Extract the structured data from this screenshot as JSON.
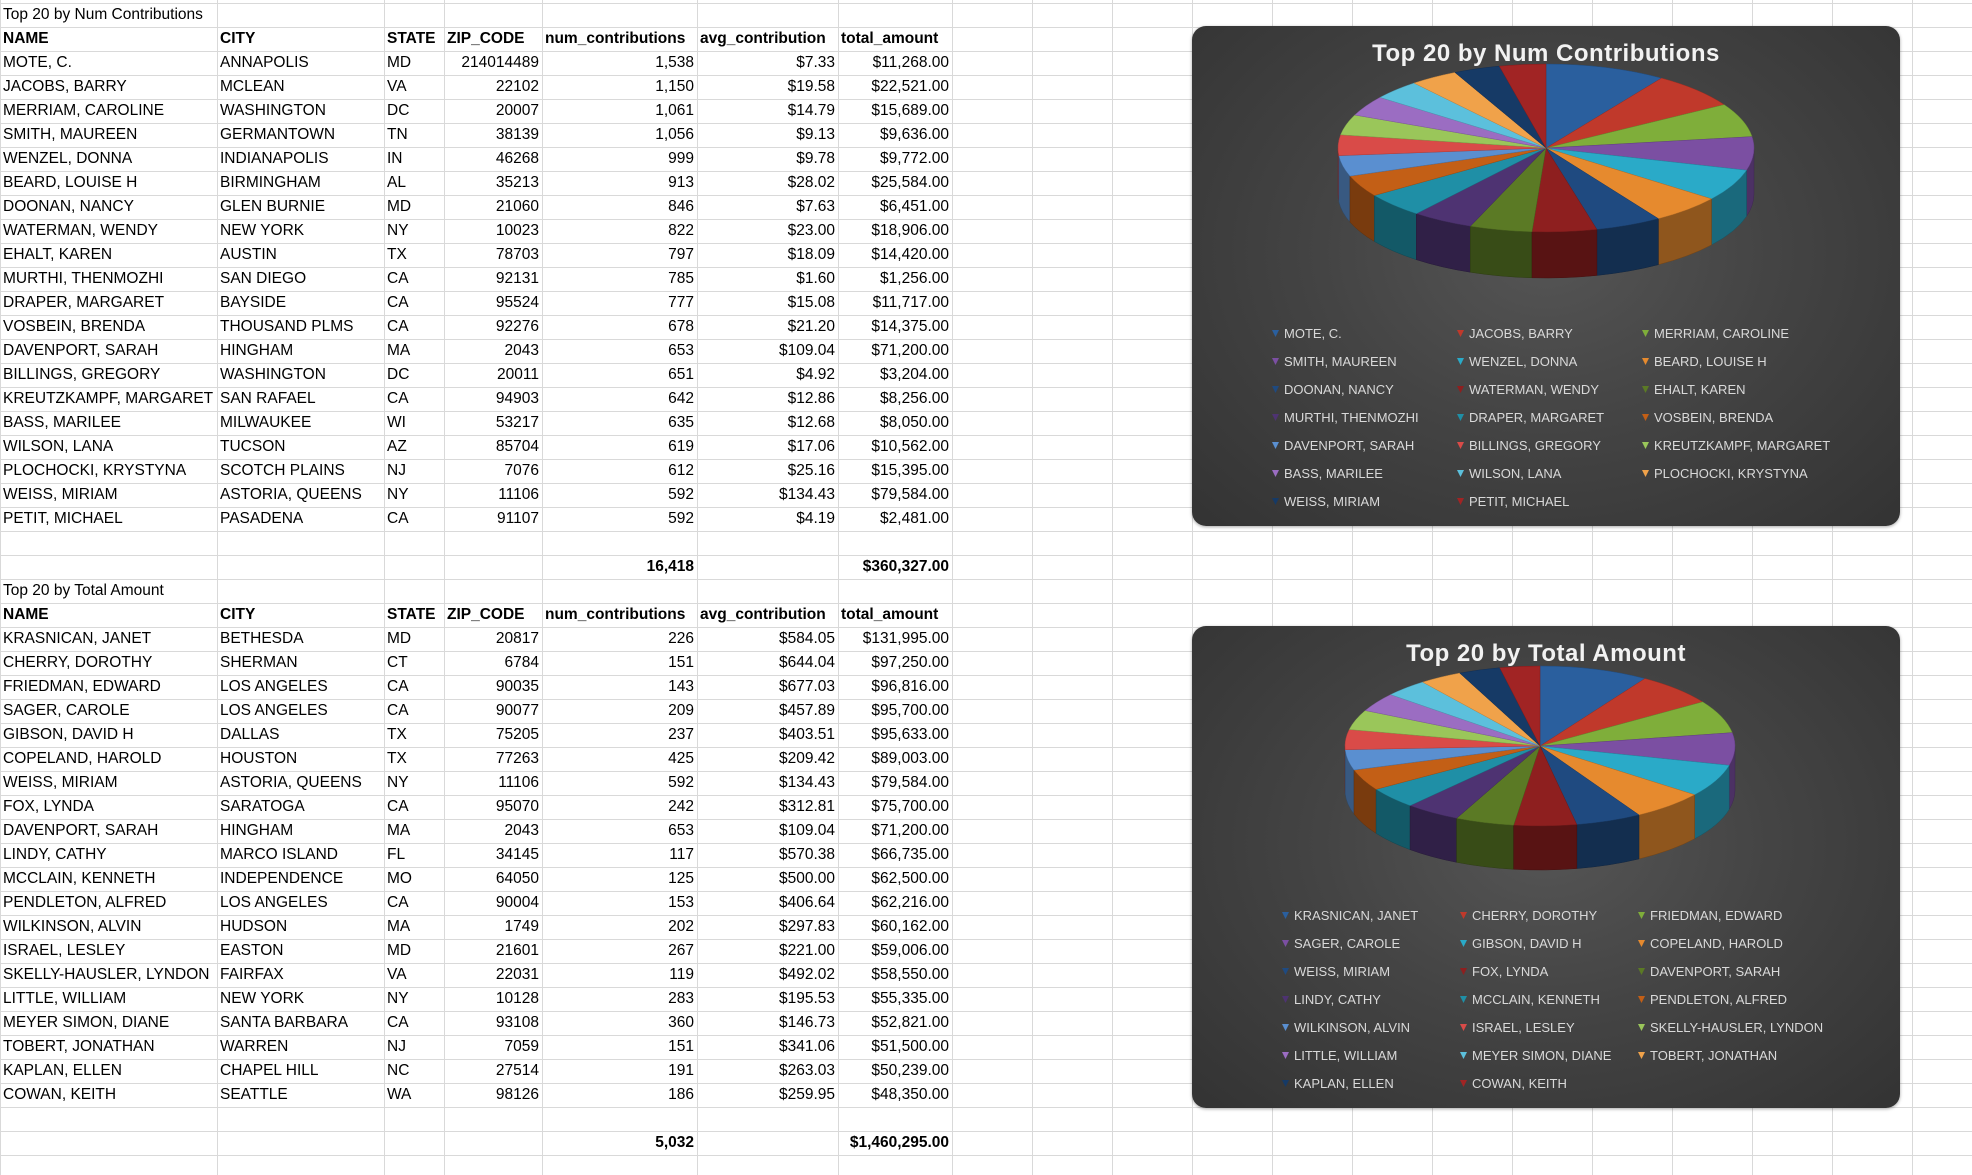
{
  "columns": [
    "NAME",
    "CITY",
    "STATE",
    "ZIP_CODE",
    "num_contributions",
    "avg_contribution",
    "total_amount"
  ],
  "palette": [
    "#2a5f9e",
    "#c0392b",
    "#7fae3a",
    "#7b4fa2",
    "#2aaac8",
    "#e68a2e",
    "#1f4a80",
    "#8e1f1f",
    "#5b7a25",
    "#4e3372",
    "#1f8fa6",
    "#c35f16",
    "#5a8fd0",
    "#d94b48",
    "#9ac65a",
    "#9b6dc2",
    "#5cc0dc",
    "#f0a24a",
    "#163a66",
    "#a12424"
  ],
  "tables": [
    {
      "title": "Top 20 by Num Contributions",
      "rows": [
        [
          "MOTE, C.",
          "ANNAPOLIS",
          "MD",
          "214014489",
          "1,538",
          "$7.33",
          "$11,268.00"
        ],
        [
          "JACOBS, BARRY",
          "MCLEAN",
          "VA",
          "22102",
          "1,150",
          "$19.58",
          "$22,521.00"
        ],
        [
          "MERRIAM, CAROLINE",
          "WASHINGTON",
          "DC",
          "20007",
          "1,061",
          "$14.79",
          "$15,689.00"
        ],
        [
          "SMITH, MAUREEN",
          "GERMANTOWN",
          "TN",
          "38139",
          "1,056",
          "$9.13",
          "$9,636.00"
        ],
        [
          "WENZEL, DONNA",
          "INDIANAPOLIS",
          "IN",
          "46268",
          "999",
          "$9.78",
          "$9,772.00"
        ],
        [
          "BEARD, LOUISE H",
          "BIRMINGHAM",
          "AL",
          "35213",
          "913",
          "$28.02",
          "$25,584.00"
        ],
        [
          "DOONAN, NANCY",
          "GLEN BURNIE",
          "MD",
          "21060",
          "846",
          "$7.63",
          "$6,451.00"
        ],
        [
          "WATERMAN, WENDY",
          "NEW YORK",
          "NY",
          "10023",
          "822",
          "$23.00",
          "$18,906.00"
        ],
        [
          "EHALT, KAREN",
          "AUSTIN",
          "TX",
          "78703",
          "797",
          "$18.09",
          "$14,420.00"
        ],
        [
          "MURTHI, THENMOZHI",
          "SAN DIEGO",
          "CA",
          "92131",
          "785",
          "$1.60",
          "$1,256.00"
        ],
        [
          "DRAPER, MARGARET",
          "BAYSIDE",
          "CA",
          "95524",
          "777",
          "$15.08",
          "$11,717.00"
        ],
        [
          "VOSBEIN, BRENDA",
          "THOUSAND PLMS",
          "CA",
          "92276",
          "678",
          "$21.20",
          "$14,375.00"
        ],
        [
          "DAVENPORT, SARAH",
          "HINGHAM",
          "MA",
          "2043",
          "653",
          "$109.04",
          "$71,200.00"
        ],
        [
          "BILLINGS, GREGORY",
          "WASHINGTON",
          "DC",
          "20011",
          "651",
          "$4.92",
          "$3,204.00"
        ],
        [
          "KREUTZKAMPF, MARGARET",
          "SAN RAFAEL",
          "CA",
          "94903",
          "642",
          "$12.86",
          "$8,256.00"
        ],
        [
          "BASS, MARILEE",
          "MILWAUKEE",
          "WI",
          "53217",
          "635",
          "$12.68",
          "$8,050.00"
        ],
        [
          "WILSON, LANA",
          "TUCSON",
          "AZ",
          "85704",
          "619",
          "$17.06",
          "$10,562.00"
        ],
        [
          "PLOCHOCKI, KRYSTYNA",
          "SCOTCH PLAINS",
          "NJ",
          "7076",
          "612",
          "$25.16",
          "$15,395.00"
        ],
        [
          "WEISS, MIRIAM",
          "ASTORIA,  QUEENS",
          "NY",
          "11106",
          "592",
          "$134.43",
          "$79,584.00"
        ],
        [
          "PETIT, MICHAEL",
          "PASADENA",
          "CA",
          "91107",
          "592",
          "$4.19",
          "$2,481.00"
        ]
      ],
      "total_count": "16,418",
      "total_amount": "$360,327.00"
    },
    {
      "title": "Top 20 by Total Amount",
      "rows": [
        [
          "KRASNICAN, JANET",
          "BETHESDA",
          "MD",
          "20817",
          "226",
          "$584.05",
          "$131,995.00"
        ],
        [
          "CHERRY, DOROTHY",
          "SHERMAN",
          "CT",
          "6784",
          "151",
          "$644.04",
          "$97,250.00"
        ],
        [
          "FRIEDMAN, EDWARD",
          "LOS ANGELES",
          "CA",
          "90035",
          "143",
          "$677.03",
          "$96,816.00"
        ],
        [
          "SAGER, CAROLE",
          "LOS ANGELES",
          "CA",
          "90077",
          "209",
          "$457.89",
          "$95,700.00"
        ],
        [
          "GIBSON, DAVID H",
          "DALLAS",
          "TX",
          "75205",
          "237",
          "$403.51",
          "$95,633.00"
        ],
        [
          "COPELAND, HAROLD",
          "HOUSTON",
          "TX",
          "77263",
          "425",
          "$209.42",
          "$89,003.00"
        ],
        [
          "WEISS, MIRIAM",
          "ASTORIA,  QUEENS",
          "NY",
          "11106",
          "592",
          "$134.43",
          "$79,584.00"
        ],
        [
          "FOX, LYNDA",
          "SARATOGA",
          "CA",
          "95070",
          "242",
          "$312.81",
          "$75,700.00"
        ],
        [
          "DAVENPORT, SARAH",
          "HINGHAM",
          "MA",
          "2043",
          "653",
          "$109.04",
          "$71,200.00"
        ],
        [
          "LINDY, CATHY",
          "MARCO ISLAND",
          "FL",
          "34145",
          "117",
          "$570.38",
          "$66,735.00"
        ],
        [
          "MCCLAIN, KENNETH",
          "INDEPENDENCE",
          "MO",
          "64050",
          "125",
          "$500.00",
          "$62,500.00"
        ],
        [
          "PENDLETON, ALFRED",
          "LOS ANGELES",
          "CA",
          "90004",
          "153",
          "$406.64",
          "$62,216.00"
        ],
        [
          "WILKINSON, ALVIN",
          "HUDSON",
          "MA",
          "1749",
          "202",
          "$297.83",
          "$60,162.00"
        ],
        [
          "ISRAEL, LESLEY",
          "EASTON",
          "MD",
          "21601",
          "267",
          "$221.00",
          "$59,006.00"
        ],
        [
          "SKELLY-HAUSLER, LYNDON",
          "FAIRFAX",
          "VA",
          "22031",
          "119",
          "$492.02",
          "$58,550.00"
        ],
        [
          "LITTLE, WILLIAM",
          "NEW YORK",
          "NY",
          "10128",
          "283",
          "$195.53",
          "$55,335.00"
        ],
        [
          "MEYER SIMON, DIANE",
          "SANTA BARBARA",
          "CA",
          "93108",
          "360",
          "$146.73",
          "$52,821.00"
        ],
        [
          "TOBERT, JONATHAN",
          "WARREN",
          "NJ",
          "7059",
          "151",
          "$341.06",
          "$51,500.00"
        ],
        [
          "KAPLAN, ELLEN",
          "CHAPEL HILL",
          "NC",
          "27514",
          "191",
          "$263.03",
          "$50,239.00"
        ],
        [
          "COWAN, KEITH",
          "SEATTLE",
          "WA",
          "98126",
          "186",
          "$259.95",
          "$48,350.00"
        ]
      ],
      "total_count": "5,032",
      "total_amount": "$1,460,295.00"
    }
  ],
  "chart_data": [
    {
      "type": "pie",
      "title": "Top 20 by Num Contributions",
      "categories": [
        "MOTE, C.",
        "JACOBS, BARRY",
        "MERRIAM, CAROLINE",
        "SMITH, MAUREEN",
        "WENZEL, DONNA",
        "BEARD, LOUISE H",
        "DOONAN, NANCY",
        "WATERMAN, WENDY",
        "EHALT, KAREN",
        "MURTHI, THENMOZHI",
        "DRAPER, MARGARET",
        "VOSBEIN, BRENDA",
        "DAVENPORT, SARAH",
        "BILLINGS, GREGORY",
        "KREUTZKAMPF, MARGARET",
        "BASS, MARILEE",
        "WILSON, LANA",
        "PLOCHOCKI, KRYSTYNA",
        "WEISS, MIRIAM",
        "PETIT, MICHAEL"
      ],
      "values": [
        1538,
        1150,
        1061,
        1056,
        999,
        913,
        846,
        822,
        797,
        785,
        777,
        678,
        653,
        651,
        642,
        635,
        619,
        612,
        592,
        592
      ],
      "legend": "bottom"
    },
    {
      "type": "pie",
      "title": "Top 20 by Total Amount",
      "categories": [
        "KRASNICAN, JANET",
        "CHERRY, DOROTHY",
        "FRIEDMAN, EDWARD",
        "SAGER, CAROLE",
        "GIBSON, DAVID H",
        "COPELAND, HAROLD",
        "WEISS, MIRIAM",
        "FOX, LYNDA",
        "DAVENPORT, SARAH",
        "LINDY, CATHY",
        "MCCLAIN, KENNETH",
        "PENDLETON, ALFRED",
        "WILKINSON, ALVIN",
        "ISRAEL, LESLEY",
        "SKELLY-HAUSLER, LYNDON",
        "LITTLE, WILLIAM",
        "MEYER SIMON, DIANE",
        "TOBERT, JONATHAN",
        "KAPLAN, ELLEN",
        "COWAN, KEITH"
      ],
      "values": [
        131995,
        97250,
        96816,
        95700,
        95633,
        89003,
        79584,
        75700,
        71200,
        66735,
        62500,
        62216,
        60162,
        59006,
        58550,
        55335,
        52821,
        51500,
        50239,
        48350
      ],
      "legend": "bottom"
    }
  ]
}
